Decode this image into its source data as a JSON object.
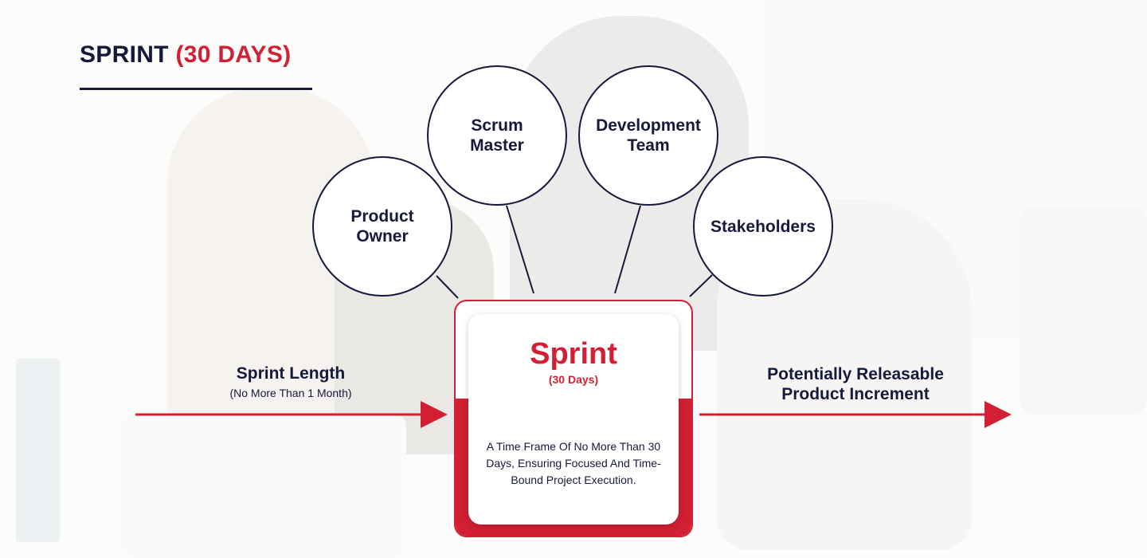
{
  "title": {
    "part1": "SPRINT",
    "part2": "(30 DAYS)"
  },
  "roles": [
    {
      "label": "Product Owner"
    },
    {
      "label": "Scrum Master"
    },
    {
      "label": "Development Team"
    },
    {
      "label": "Stakeholders"
    }
  ],
  "sprint": {
    "title": "Sprint",
    "subtitle": "(30 Days)",
    "description": "A Time Frame Of No More Than 30 Days, Ensuring Focused And Time-Bound Project Execution."
  },
  "input": {
    "title": "Sprint Length",
    "subtitle": "(No More Than 1 Month)"
  },
  "output": {
    "title": "Potentially Releasable Product Increment"
  },
  "colors": {
    "navy": "#15193a",
    "red": "#d21f33",
    "white": "#ffffff"
  }
}
